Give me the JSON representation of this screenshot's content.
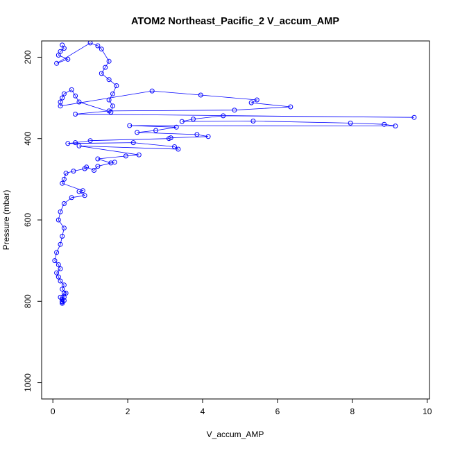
{
  "chart_data": {
    "type": "scatter",
    "title": "ATOM2 Northeast_Pacific_2 V_accum_AMP",
    "xlabel": "V_accum_AMP",
    "ylabel": "Pressure (mbar)",
    "xlim": [
      -0.3,
      10.06
    ],
    "ylim": [
      1040,
      160
    ],
    "y_reversed": true,
    "xticks": [
      0,
      2,
      4,
      6,
      8,
      10
    ],
    "yticks": [
      200,
      400,
      600,
      800,
      1000
    ],
    "point_style": "open-circle",
    "connected": true,
    "color": "#0000ff",
    "series": [
      {
        "x": [
          0.25,
          0.3,
          0.2,
          0.15,
          0.4,
          0.1,
          1.0,
          1.2,
          1.3,
          1.5,
          1.4,
          1.3,
          1.5,
          1.7,
          1.6,
          1.5,
          1.6,
          1.55,
          0.7,
          0.6,
          0.5,
          0.3,
          0.25,
          0.2,
          0.2,
          2.65,
          3.95,
          5.45,
          5.3,
          6.35,
          4.85,
          1.5,
          0.6,
          9.65,
          4.55,
          3.75,
          3.45,
          5.35,
          7.95,
          8.85,
          9.15,
          2.05,
          3.3,
          2.75,
          2.25,
          3.85,
          4.15,
          3.15,
          3.1,
          1.0,
          0.6,
          0.4,
          2.15,
          3.25,
          3.35,
          0.7,
          2.3,
          1.95,
          1.2,
          1.55,
          1.65,
          1.2,
          1.1,
          0.9,
          0.85,
          0.55,
          0.35,
          0.3,
          0.25,
          0.8,
          0.7,
          0.85,
          0.5,
          0.3,
          0.2,
          0.15,
          0.3,
          0.25,
          0.2,
          0.1,
          0.05,
          0.15,
          0.2,
          0.1,
          0.15,
          0.2,
          0.3,
          0.25,
          0.35,
          0.3,
          0.25,
          0.25,
          0.3,
          0.2,
          0.25,
          0.3,
          0.25
        ],
        "y": [
          170,
          178,
          186,
          195,
          205,
          215,
          165,
          172,
          180,
          210,
          225,
          240,
          255,
          270,
          290,
          305,
          320,
          335,
          310,
          295,
          280,
          290,
          300,
          310,
          320,
          283,
          293,
          305,
          312,
          322,
          330,
          332,
          340,
          348,
          344,
          352,
          358,
          357,
          362,
          365,
          369,
          368,
          372,
          380,
          385,
          390,
          395,
          398,
          400,
          405,
          410,
          412,
          410,
          420,
          426,
          418,
          440,
          443,
          450,
          460,
          458,
          468,
          478,
          470,
          474,
          480,
          485,
          500,
          510,
          528,
          530,
          540,
          545,
          560,
          580,
          600,
          620,
          640,
          660,
          680,
          700,
          710,
          720,
          730,
          740,
          750,
          760,
          770,
          780,
          790,
          795,
          800,
          780,
          790,
          802,
          798,
          805
        ]
      }
    ]
  }
}
